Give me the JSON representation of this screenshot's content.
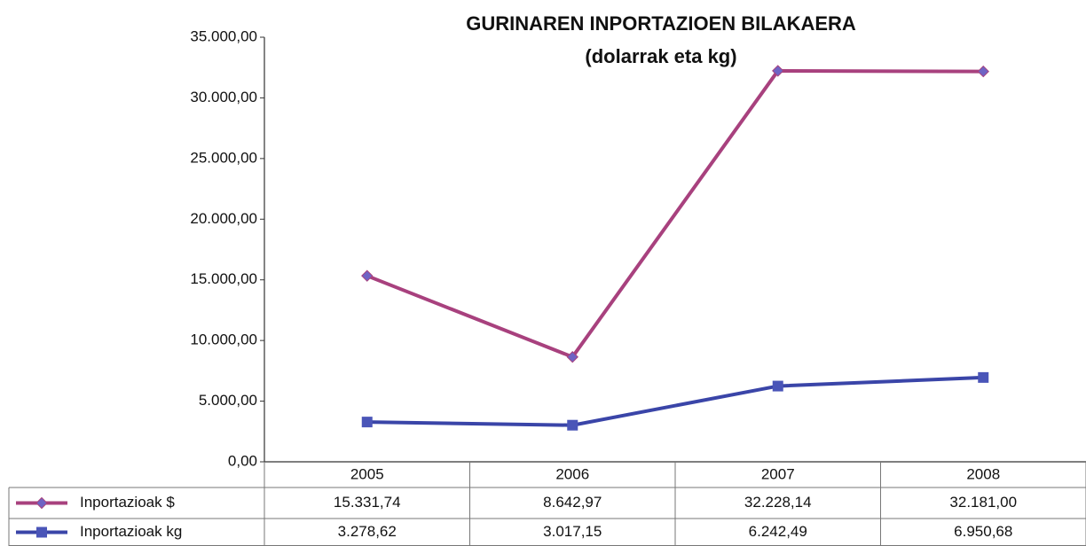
{
  "chart_data": {
    "type": "line",
    "title": "GURINAREN INPORTAZIOEN BILAKAERA",
    "subtitle": "(dolarrak eta kg)",
    "categories": [
      "2005",
      "2006",
      "2007",
      "2008"
    ],
    "series": [
      {
        "name": "Inportazioak $",
        "color": "#a8417e",
        "marker": "diamond",
        "marker_color": "#6f63c4",
        "values": [
          15331.74,
          8642.97,
          32228.14,
          32181.0
        ],
        "value_labels": [
          "15.331,74",
          "8.642,97",
          "32.228,14",
          "32.181,00"
        ]
      },
      {
        "name": "Inportazioak kg",
        "color": "#3a45a8",
        "marker": "square",
        "marker_color": "#4a55b8",
        "values": [
          3278.62,
          3017.15,
          6242.49,
          6950.68
        ],
        "value_labels": [
          "3.278,62",
          "3.017,15",
          "6.242,49",
          "6.950,68"
        ]
      }
    ],
    "ylim": [
      0,
      35000
    ],
    "yticks": [
      {
        "value": 0,
        "label": "0,00"
      },
      {
        "value": 5000,
        "label": "5.000,00"
      },
      {
        "value": 10000,
        "label": "10.000,00"
      },
      {
        "value": 15000,
        "label": "15.000,00"
      },
      {
        "value": 20000,
        "label": "20.000,00"
      },
      {
        "value": 25000,
        "label": "25.000,00"
      },
      {
        "value": 30000,
        "label": "30.000,00"
      },
      {
        "value": 35000,
        "label": "35.000,00"
      }
    ],
    "grid": false
  }
}
